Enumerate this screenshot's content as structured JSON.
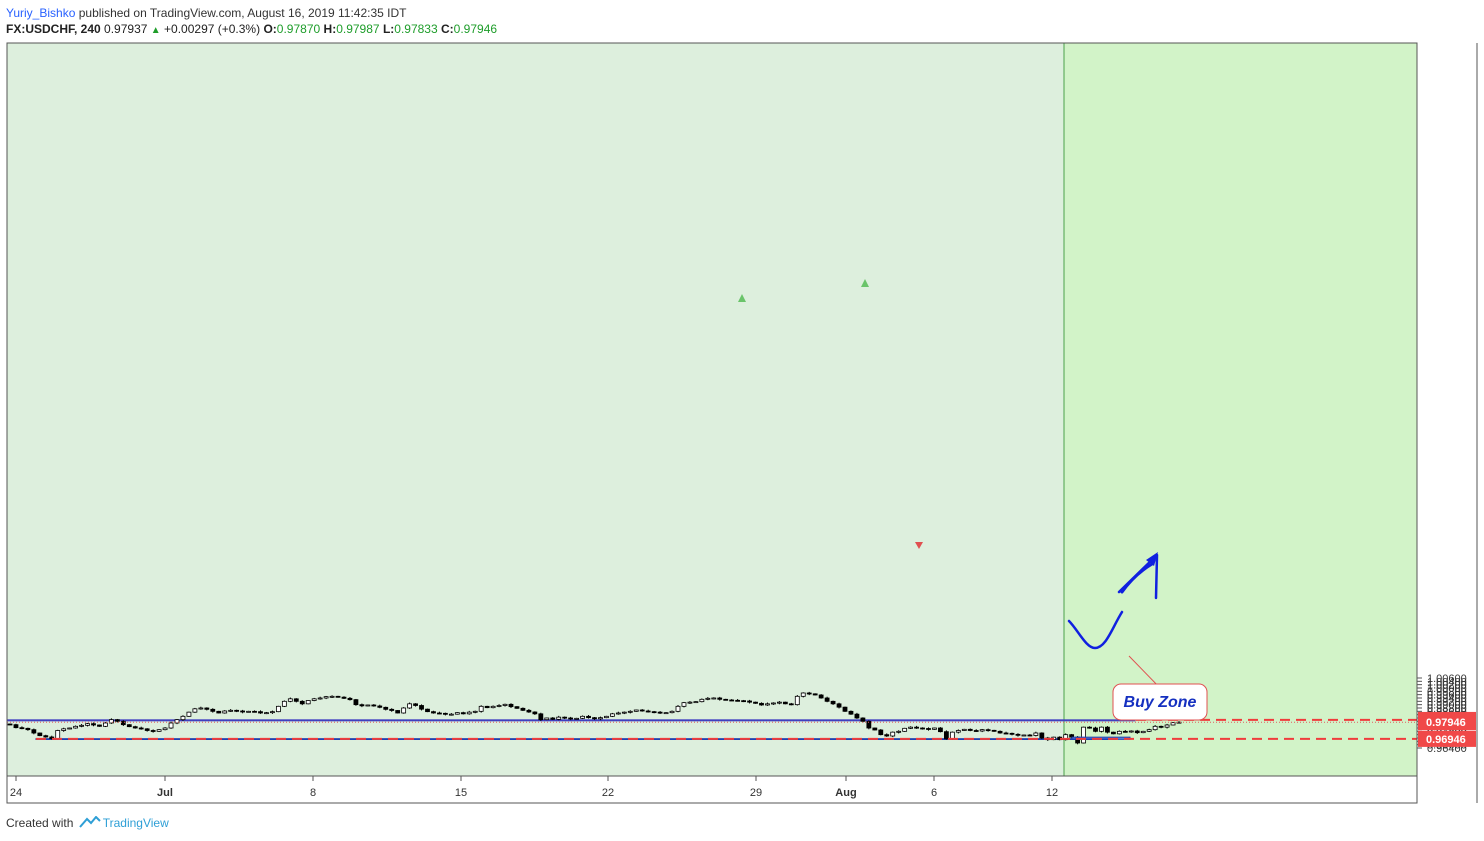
{
  "header": {
    "author": "Yuriy_Bishko",
    "published_text": "published on TradingView.com, August 16, 2019 11:42:35 IDT",
    "symbol": "FX:USDCHF",
    "interval": "240",
    "last": "0.97937",
    "change": "+0.00297 (+0.3%)",
    "o_label": "O:",
    "o_value": "0.97870",
    "h_label": "H:",
    "h_value": "0.97987",
    "l_label": "L:",
    "l_value": "0.97833",
    "c_label": "C:",
    "c_value": "0.97946"
  },
  "footer": {
    "created_with": "Created with",
    "brand": "TradingView"
  },
  "colors": {
    "up": "#ffffff",
    "down": "#000000",
    "wick": "#000000",
    "bg": "#ddefdd",
    "forecast_bg": "#d2f3c8",
    "resistance": "#f06464",
    "support": "#3a5fd9",
    "dashed": "#f03c3c",
    "arrow": "#1020e0",
    "label_text": "#1530c0"
  },
  "chart_data": {
    "type": "candlestick",
    "symbol": "FX:USDCHF",
    "interval": "240",
    "ylim": [
      0.9626,
      1.0064
    ],
    "y_ticks": [
      "1.00600",
      "1.00400",
      "1.00200",
      "1.00000",
      "0.99800",
      "0.99600",
      "0.99400",
      "0.99200",
      "0.99000",
      "0.98800",
      "0.98600",
      "0.98400",
      "0.98200",
      "0.98000",
      "0.97800",
      "0.97600",
      "0.97400",
      "0.97200",
      "0.97000",
      "0.96800",
      "0.96600",
      "0.96400"
    ],
    "x_ticks": [
      "24",
      "Jul",
      "8",
      "15",
      "22",
      "29",
      "Aug",
      "6",
      "12"
    ],
    "price_labels": [
      "0.98084",
      "0.97946",
      "0.96946"
    ],
    "levels": {
      "resistance": 0.98084,
      "support": 0.96946,
      "last_price": 0.97946
    },
    "zones": [
      {
        "name": "resistance",
        "y_from": 0.9803,
        "y_to": 0.9809
      },
      {
        "name": "support",
        "y_from": 0.9691,
        "y_to": 0.9696
      },
      {
        "name": "Buy Zone",
        "y_from": 0.9692,
        "y_to": 0.9705
      }
    ],
    "annotations": [
      {
        "text": "Buy Zone"
      }
    ],
    "closes": [
      0.978,
      0.9762,
      0.9758,
      0.975,
      0.973,
      0.9714,
      0.9706,
      0.9696,
      0.9745,
      0.9755,
      0.976,
      0.977,
      0.9776,
      0.9786,
      0.9778,
      0.977,
      0.979,
      0.981,
      0.98,
      0.978,
      0.9768,
      0.976,
      0.9755,
      0.9745,
      0.974,
      0.975,
      0.976,
      0.979,
      0.981,
      0.983,
      0.9855,
      0.9875,
      0.988,
      0.9872,
      0.986,
      0.985,
      0.9862,
      0.9866,
      0.9862,
      0.9856,
      0.986,
      0.9858,
      0.985,
      0.9852,
      0.9858,
      0.989,
      0.992,
      0.9935,
      0.992,
      0.9905,
      0.9925,
      0.9935,
      0.994,
      0.9948,
      0.995,
      0.9945,
      0.9938,
      0.993,
      0.99,
      0.9893,
      0.9898,
      0.9892,
      0.9884,
      0.9872,
      0.9865,
      0.985,
      0.988,
      0.9905,
      0.9895,
      0.9873,
      0.9858,
      0.985,
      0.9848,
      0.9842,
      0.9843,
      0.9852,
      0.9845,
      0.9855,
      0.986,
      0.989,
      0.9882,
      0.989,
      0.9895,
      0.9902,
      0.9888,
      0.9878,
      0.9866,
      0.9856,
      0.9845,
      0.981,
      0.982,
      0.9812,
      0.9825,
      0.982,
      0.9815,
      0.9818,
      0.983,
      0.9822,
      0.9815,
      0.9822,
      0.983,
      0.9845,
      0.985,
      0.9855,
      0.986,
      0.9868,
      0.9862,
      0.9858,
      0.9855,
      0.9852,
      0.9852,
      0.986,
      0.989,
      0.9912,
      0.9915,
      0.9918,
      0.9932,
      0.9938,
      0.994,
      0.9932,
      0.9928,
      0.9926,
      0.9924,
      0.9922,
      0.9915,
      0.9908,
      0.9898,
      0.9905,
      0.991,
      0.9915,
      0.9905,
      0.99,
      0.995,
      0.997,
      0.9965,
      0.9958,
      0.994,
      0.992,
      0.9905,
      0.9885,
      0.986,
      0.9843,
      0.982,
      0.98,
      0.976,
      0.9748,
      0.972,
      0.9712,
      0.9735,
      0.974,
      0.9758,
      0.9765,
      0.976,
      0.9757,
      0.9752,
      0.976,
      0.9738,
      0.9695,
      0.9735,
      0.9745,
      0.9752,
      0.9745,
      0.9742,
      0.975,
      0.9746,
      0.974,
      0.973,
      0.9728,
      0.9722,
      0.9716,
      0.9718,
      0.9715,
      0.973,
      0.97,
      0.969,
      0.9705,
      0.969,
      0.972,
      0.9705,
      0.967,
      0.9765,
      0.976,
      0.974,
      0.9765,
      0.9735,
      0.9725,
      0.974,
      0.9738,
      0.9742,
      0.9732,
      0.974,
      0.975,
      0.977,
      0.9765,
      0.9778,
      0.9792,
      0.9795
    ]
  }
}
